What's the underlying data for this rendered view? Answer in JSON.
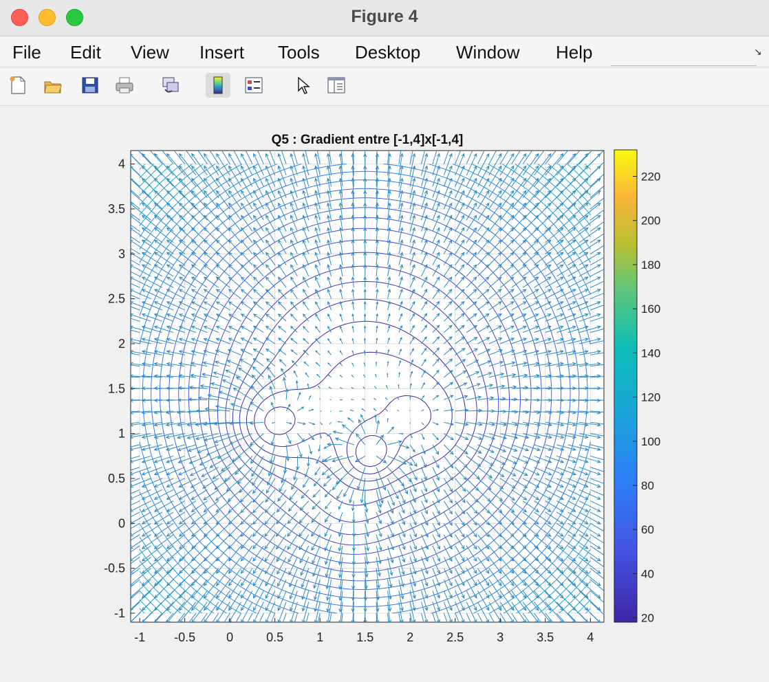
{
  "window": {
    "title": "Figure 4"
  },
  "menubar": {
    "items": [
      "File",
      "Edit",
      "View",
      "Insert",
      "Tools",
      "Desktop",
      "Window",
      "Help"
    ]
  },
  "toolbar": {
    "tools": [
      "new-figure-icon",
      "open-file-icon",
      "save-icon",
      "print-icon",
      "link-plot-icon",
      "insert-colorbar-icon",
      "insert-legend-icon",
      "edit-plot-pointer-icon",
      "property-inspector-icon"
    ]
  },
  "chart_data": {
    "type": "contour",
    "title": "Q5 : Gradient entre [-1,4]x[-1,4]",
    "xlabel": "",
    "ylabel": "",
    "xlim": [
      -1.1,
      4.15
    ],
    "ylim": [
      -1.1,
      4.15
    ],
    "xticks": [
      "-1",
      "-0.5",
      "0",
      "0.5",
      "1",
      "1.5",
      "2",
      "2.5",
      "3",
      "3.5",
      "4"
    ],
    "yticks": [
      "4",
      "3.5",
      "3",
      "2.5",
      "2",
      "1.5",
      "1",
      "0.5",
      "0",
      "-0.5",
      "-1"
    ],
    "grid": true,
    "overlay": "quiver",
    "quiver_step": 0.125,
    "colorbar": {
      "ticks": [
        "220",
        "200",
        "180",
        "160",
        "140",
        "120",
        "100",
        "80",
        "60",
        "40",
        "20"
      ],
      "range": [
        18,
        232
      ],
      "colormap": "parula"
    },
    "colors": {
      "low": "#3e26a8",
      "mid": "#1e9ae0",
      "high": "#f9fb0e",
      "arrow": "#2b8bc4"
    }
  }
}
